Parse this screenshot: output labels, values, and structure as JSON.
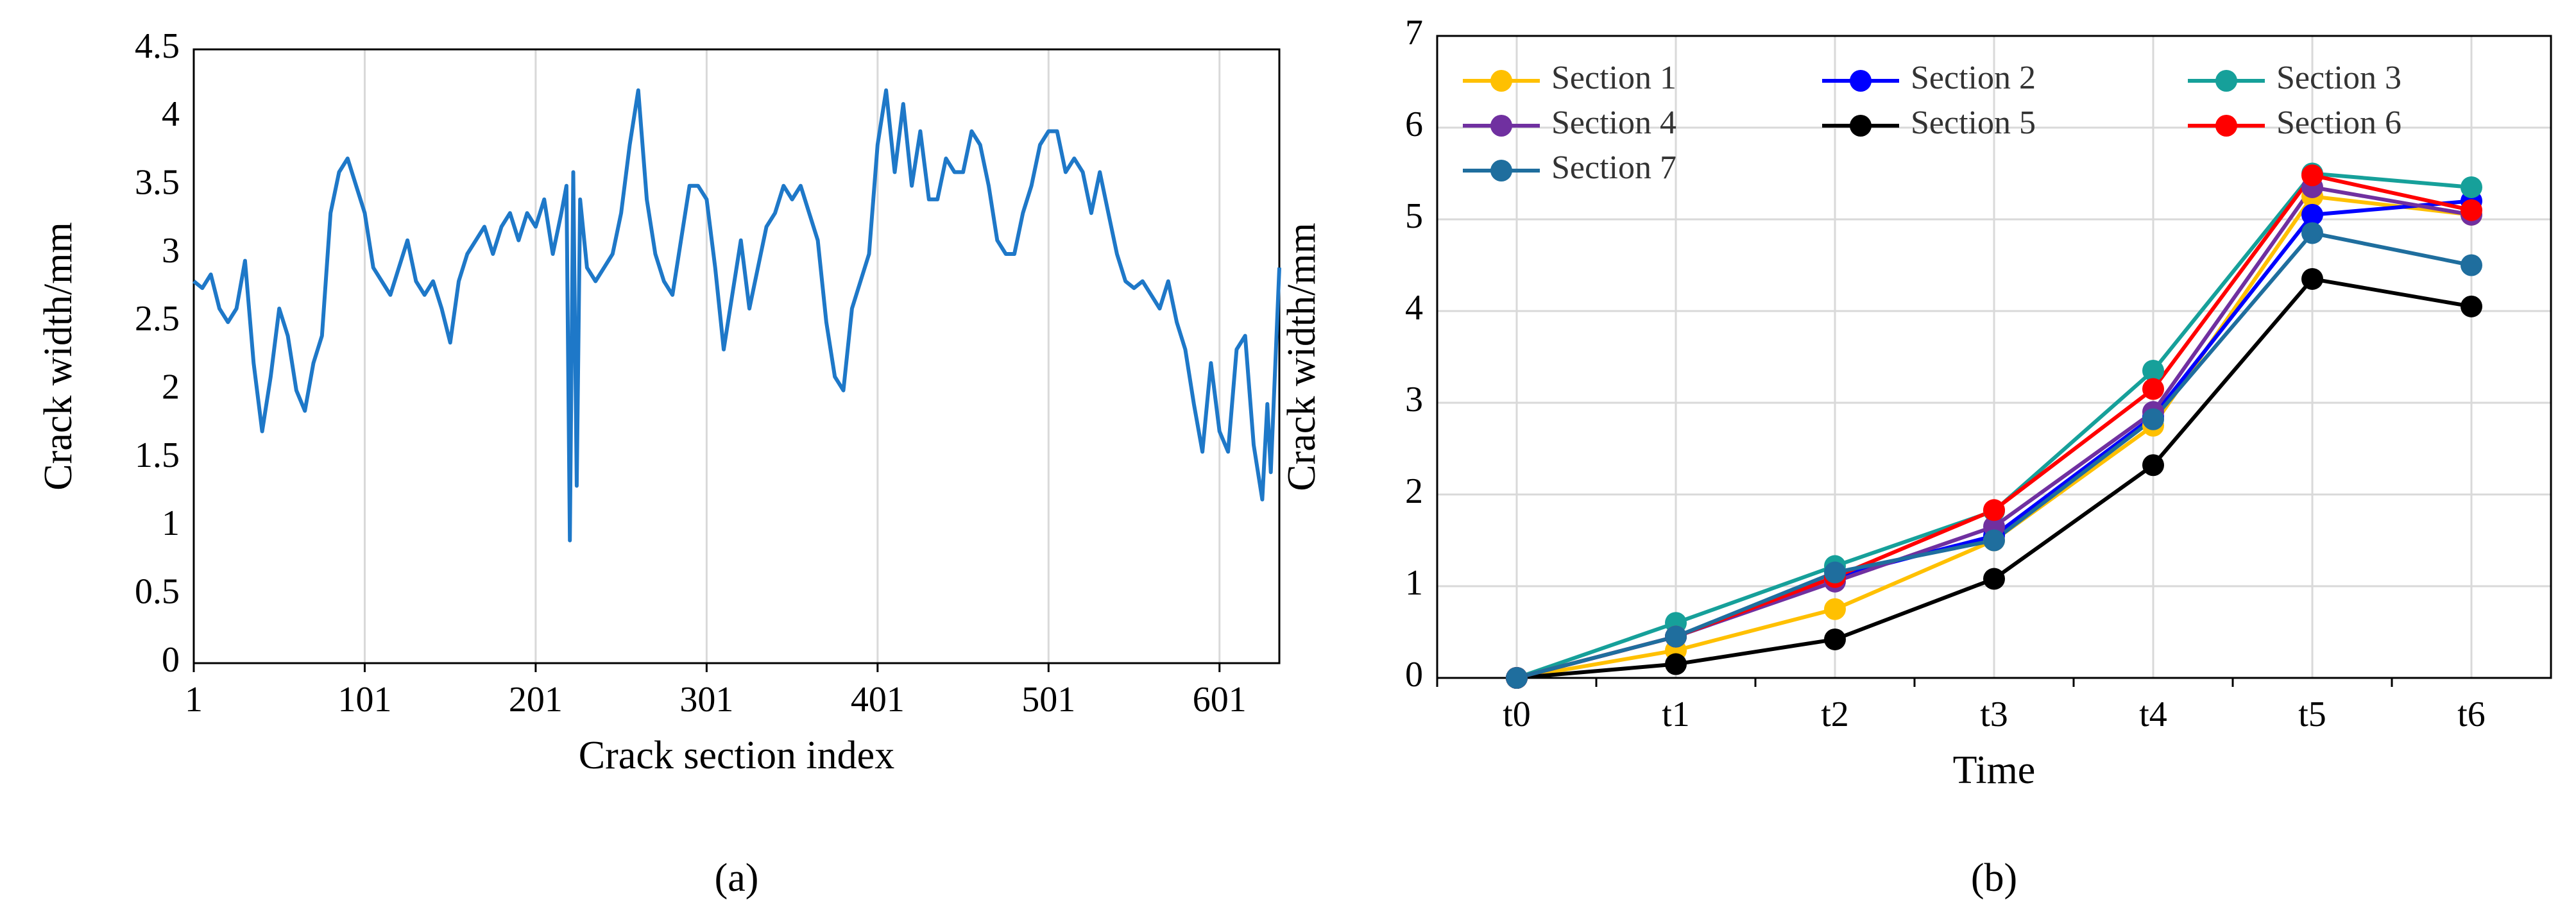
{
  "chart_data": [
    {
      "type": "line",
      "xlabel": "Crack section index",
      "ylabel": "Crack width/mm",
      "panel_label": "(a)",
      "color": "#1E78C8",
      "x": [
        1,
        6,
        11,
        16,
        21,
        26,
        31,
        36,
        41,
        46,
        51,
        56,
        61,
        66,
        71,
        76,
        81,
        86,
        91,
        96,
        101,
        106,
        111,
        116,
        121,
        126,
        131,
        136,
        141,
        146,
        151,
        156,
        161,
        166,
        171,
        176,
        181,
        186,
        191,
        196,
        201,
        206,
        211,
        216,
        219,
        221,
        223,
        225,
        227,
        231,
        236,
        241,
        246,
        251,
        256,
        261,
        266,
        271,
        276,
        281,
        286,
        291,
        296,
        301,
        306,
        311,
        316,
        321,
        326,
        331,
        336,
        341,
        346,
        351,
        356,
        361,
        366,
        371,
        376,
        381,
        386,
        391,
        396,
        401,
        406,
        411,
        416,
        421,
        426,
        431,
        436,
        441,
        446,
        451,
        456,
        461,
        466,
        471,
        476,
        481,
        486,
        491,
        496,
        501,
        506,
        511,
        516,
        521,
        526,
        531,
        536,
        541,
        546,
        551,
        556,
        561,
        566,
        571,
        576,
        581,
        586,
        591,
        596,
        601,
        606,
        611,
        616,
        621,
        626,
        629,
        631,
        636
      ],
      "values": [
        2.8,
        2.75,
        2.85,
        2.6,
        2.5,
        2.6,
        2.95,
        2.2,
        1.7,
        2.1,
        2.6,
        2.4,
        2.0,
        1.85,
        2.2,
        2.4,
        3.3,
        3.6,
        3.7,
        3.5,
        3.3,
        2.9,
        2.8,
        2.7,
        2.9,
        3.1,
        2.8,
        2.7,
        2.8,
        2.6,
        2.35,
        2.8,
        3.0,
        3.1,
        3.2,
        3.0,
        3.2,
        3.3,
        3.1,
        3.3,
        3.2,
        3.4,
        3.0,
        3.3,
        3.5,
        0.9,
        3.6,
        1.3,
        3.4,
        2.9,
        2.8,
        2.9,
        3.0,
        3.3,
        3.8,
        4.2,
        3.4,
        3.0,
        2.8,
        2.7,
        3.1,
        3.5,
        3.5,
        3.4,
        2.9,
        2.3,
        2.7,
        3.1,
        2.6,
        2.9,
        3.2,
        3.3,
        3.5,
        3.4,
        3.5,
        3.3,
        3.1,
        2.5,
        2.1,
        2.0,
        2.6,
        2.8,
        3.0,
        3.8,
        4.2,
        3.6,
        4.1,
        3.5,
        3.9,
        3.4,
        3.4,
        3.7,
        3.6,
        3.6,
        3.9,
        3.8,
        3.5,
        3.1,
        3.0,
        3.0,
        3.3,
        3.5,
        3.8,
        3.9,
        3.9,
        3.6,
        3.7,
        3.6,
        3.3,
        3.6,
        3.3,
        3.0,
        2.8,
        2.75,
        2.8,
        2.7,
        2.6,
        2.8,
        2.5,
        2.3,
        1.9,
        1.55,
        2.2,
        1.7,
        1.55,
        2.3,
        2.4,
        1.6,
        1.2,
        1.9,
        1.4,
        2.9
      ],
      "xlim": [
        1,
        636
      ],
      "xticks": [
        1,
        101,
        201,
        301,
        401,
        501,
        601
      ],
      "ylim": [
        0,
        4.5
      ],
      "yticks": [
        0,
        0.5,
        1,
        1.5,
        2,
        2.5,
        3,
        3.5,
        4,
        4.5
      ],
      "grid": "x"
    },
    {
      "type": "line",
      "xlabel": "Time",
      "ylabel": "Crack width/mm",
      "panel_label": "(b)",
      "categories": [
        "t0",
        "t1",
        "t2",
        "t3",
        "t4",
        "t5",
        "t6"
      ],
      "series": [
        {
          "name": "Section 1",
          "color": "#FFC000",
          "values": [
            0,
            0.3,
            0.75,
            1.5,
            2.75,
            5.25,
            5.05
          ]
        },
        {
          "name": "Section 2",
          "color": "#0000FF",
          "values": [
            0,
            0.45,
            1.1,
            1.55,
            2.85,
            5.05,
            5.2
          ]
        },
        {
          "name": "Section 3",
          "color": "#16A09A",
          "values": [
            0,
            0.6,
            1.22,
            1.82,
            3.35,
            5.5,
            5.35
          ]
        },
        {
          "name": "Section 4",
          "color": "#7030A0",
          "values": [
            0,
            0.45,
            1.05,
            1.65,
            2.9,
            5.35,
            5.05
          ]
        },
        {
          "name": "Section 5",
          "color": "#000000",
          "values": [
            0,
            0.15,
            0.42,
            1.08,
            2.32,
            4.35,
            4.05
          ]
        },
        {
          "name": "Section 6",
          "color": "#FF0000",
          "values": [
            0,
            0.45,
            1.1,
            1.83,
            3.15,
            5.48,
            5.1
          ]
        },
        {
          "name": "Section 7",
          "color": "#1F6E9E",
          "values": [
            0,
            0.45,
            1.15,
            1.5,
            2.82,
            4.85,
            4.5
          ]
        }
      ],
      "ylim": [
        0,
        7
      ],
      "yticks": [
        0,
        1,
        2,
        3,
        4,
        5,
        6,
        7
      ],
      "grid": "both",
      "legend": "top"
    }
  ]
}
